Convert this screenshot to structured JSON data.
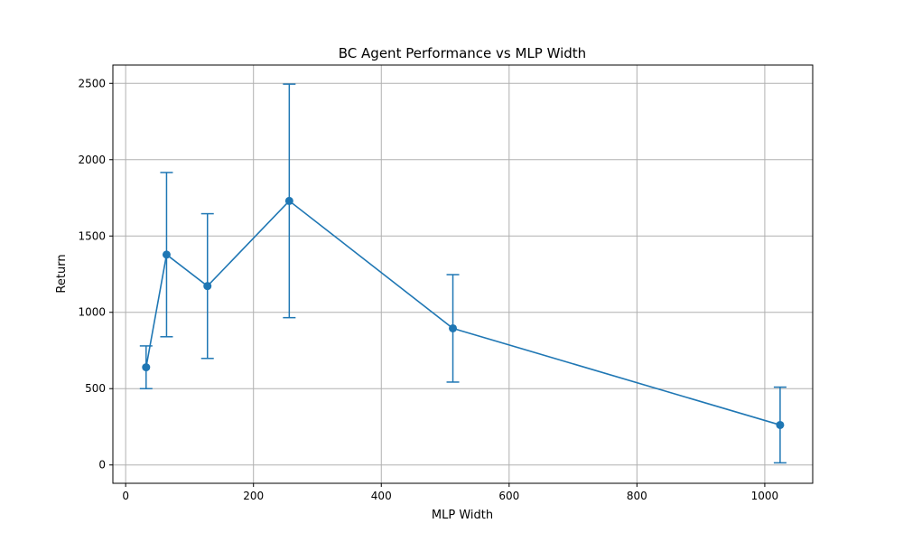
{
  "chart_data": {
    "type": "line",
    "title": "BC Agent Performance vs MLP Width",
    "xlabel": "MLP Width",
    "ylabel": "Return",
    "xlim": [
      -20,
      1075
    ],
    "ylim": [
      -120,
      2620
    ],
    "xticks": [
      0,
      200,
      400,
      600,
      800,
      1000
    ],
    "yticks": [
      0,
      500,
      1000,
      1500,
      2000,
      2500
    ],
    "grid": true,
    "color": "#1f77b4",
    "series": [
      {
        "x": [
          32,
          64,
          128,
          256,
          512,
          1024
        ],
        "y": [
          640,
          1378,
          1172,
          1730,
          895,
          262
        ],
        "yerr": [
          140,
          538,
          474,
          765,
          352,
          248
        ]
      }
    ]
  }
}
